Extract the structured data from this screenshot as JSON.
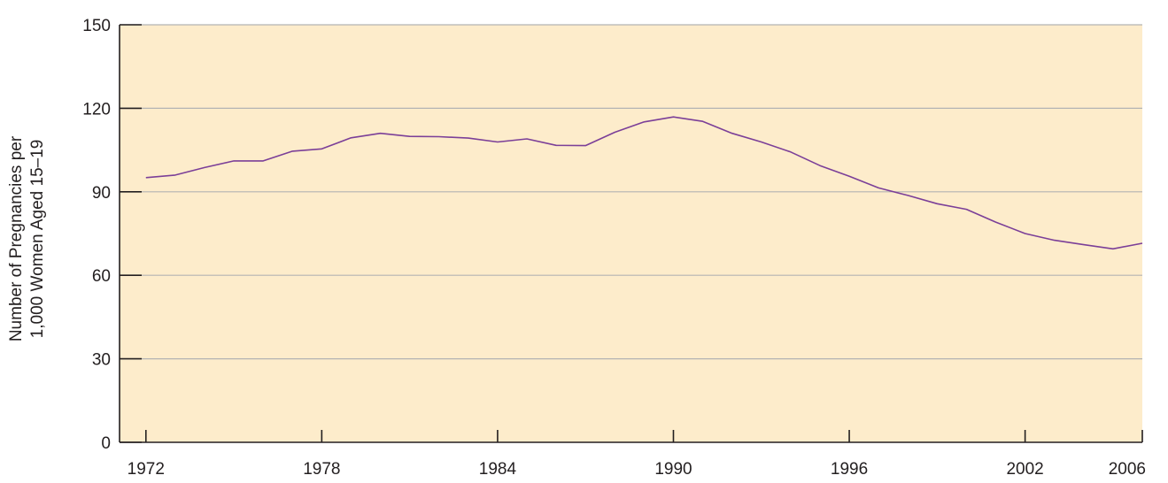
{
  "chart_data": {
    "type": "line",
    "title": "",
    "xlabel": "",
    "ylabel_lines": [
      "Number of Pregnancies per",
      "1,000 Women Aged 15–19"
    ],
    "xlim": [
      1971.1,
      2006
    ],
    "ylim": [
      0,
      150
    ],
    "x_ticks": [
      1972,
      1978,
      1984,
      1990,
      1996,
      2002,
      2006
    ],
    "y_ticks": [
      0,
      30,
      60,
      90,
      120,
      150
    ],
    "grid": "horizontal",
    "colors": {
      "plot_background": "#fdeccb",
      "line": "#7b3f98",
      "grid": "#b3b3b3",
      "axis": "#231f20"
    },
    "series": [
      {
        "x": [
          1972,
          1973,
          1974,
          1975,
          1976,
          1977,
          1978,
          1979,
          1980,
          1981,
          1982,
          1983,
          1984,
          1985,
          1986,
          1987,
          1988,
          1989,
          1990,
          1991,
          1992,
          1993,
          1994,
          1995,
          1996,
          1997,
          1998,
          1999,
          2000,
          2001,
          2002,
          2003,
          2004,
          2005,
          2006
        ],
        "y": [
          95.1,
          96.0,
          98.7,
          101.1,
          101.1,
          104.6,
          105.4,
          109.4,
          111.0,
          109.9,
          109.8,
          109.3,
          107.9,
          109.0,
          106.7,
          106.6,
          111.4,
          115.1,
          116.9,
          115.3,
          111.0,
          107.9,
          104.3,
          99.4,
          95.6,
          91.4,
          88.7,
          85.7,
          83.7,
          79.1,
          75.0,
          72.6,
          71.0,
          69.5,
          71.5
        ]
      }
    ]
  }
}
